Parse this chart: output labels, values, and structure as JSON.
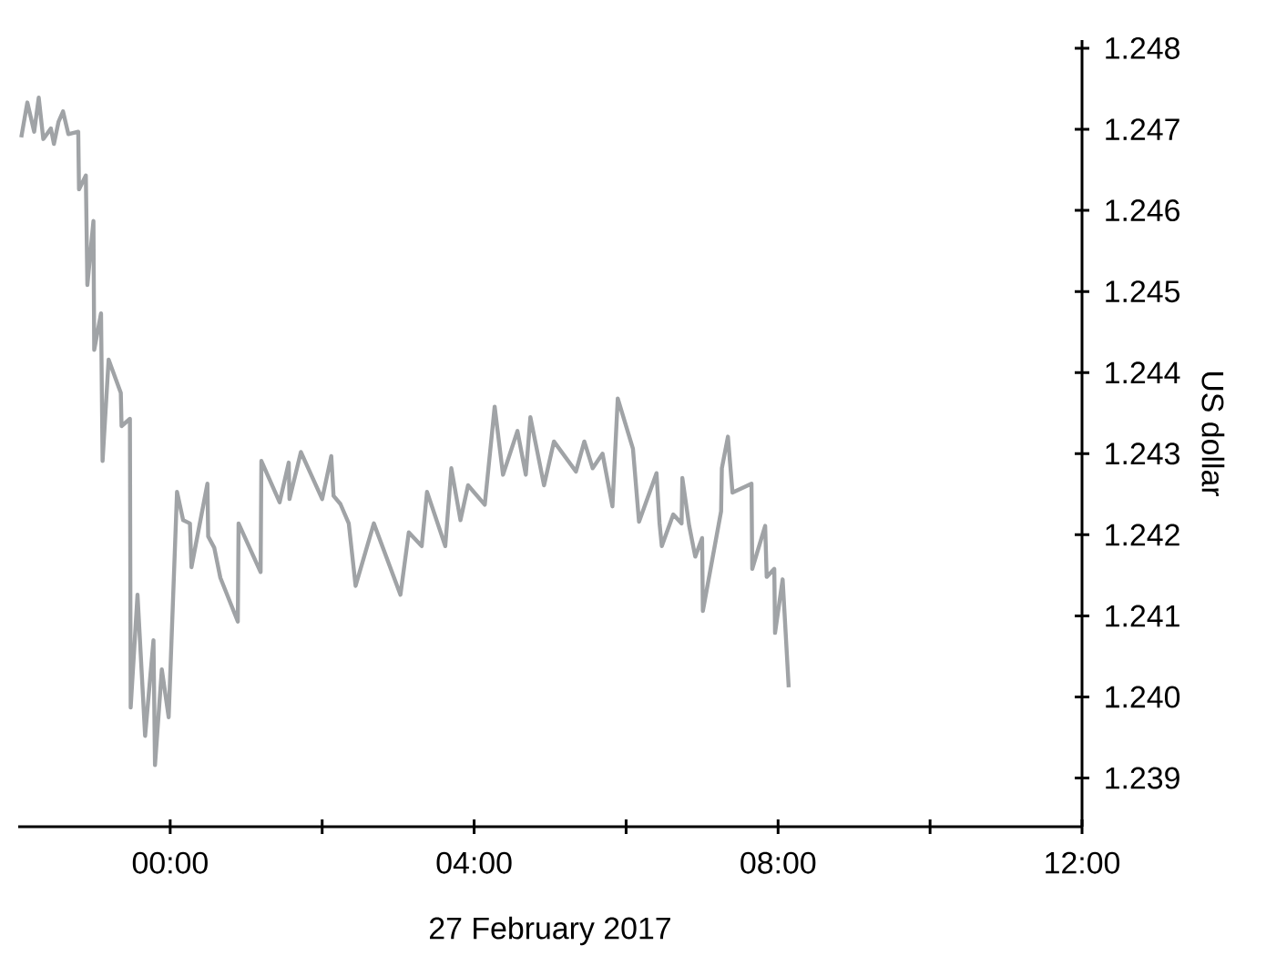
{
  "chart_data": {
    "type": "line",
    "xlabel": "27 February 2017",
    "ylabel": "US dollar",
    "xlim": [
      -2,
      12
    ],
    "ylim": [
      1.2384,
      1.2481
    ],
    "xticks": [
      {
        "value": 0,
        "label": "00:00"
      },
      {
        "value": 2,
        "label": null
      },
      {
        "value": 4,
        "label": "04:00"
      },
      {
        "value": 6,
        "label": null
      },
      {
        "value": 8,
        "label": "08:00"
      },
      {
        "value": 10,
        "label": null
      },
      {
        "value": 12,
        "label": "12:00"
      }
    ],
    "yticks": [
      1.239,
      {
        "value": 1.24,
        "label": "1.240"
      },
      1.241,
      1.242,
      1.243,
      1.244,
      1.245,
      1.246,
      1.247,
      1.248
    ],
    "grid": false,
    "marker": "none",
    "line_style": "solid",
    "series": [
      {
        "color": "#a0a3a6",
        "x": [
          -1.96,
          -1.88,
          -1.79,
          -1.73,
          -1.67,
          -1.57,
          -1.53,
          -1.47,
          -1.41,
          -1.34,
          -1.21,
          -1.2,
          -1.11,
          -1.09,
          -1.01,
          -1.0,
          -0.91,
          -0.89,
          -0.81,
          -0.65,
          -0.64,
          -0.53,
          -0.52,
          -0.43,
          -0.33,
          -0.22,
          -0.2,
          -0.11,
          -0.02,
          0.09,
          0.17,
          0.26,
          0.28,
          0.49,
          0.5,
          0.58,
          0.66,
          0.89,
          0.9,
          1.19,
          1.2,
          1.44,
          1.56,
          1.57,
          1.72,
          2.0,
          2.12,
          2.15,
          2.24,
          2.35,
          2.44,
          2.68,
          3.03,
          3.14,
          3.31,
          3.38,
          3.62,
          3.7,
          3.82,
          3.92,
          4.14,
          4.27,
          4.38,
          4.57,
          4.68,
          4.74,
          4.92,
          5.05,
          5.34,
          5.45,
          5.56,
          5.69,
          5.82,
          5.89,
          6.09,
          6.17,
          6.4,
          6.44,
          6.47,
          6.62,
          6.73,
          6.74,
          6.83,
          6.91,
          7.0,
          7.01,
          7.25,
          7.26,
          7.34,
          7.4,
          7.65,
          7.66,
          7.83,
          7.85,
          7.95,
          7.96,
          8.06,
          8.14
        ],
        "values": [
          1.2469,
          1.24733,
          1.24697,
          1.24739,
          1.24688,
          1.24701,
          1.24682,
          1.24709,
          1.24722,
          1.24694,
          1.24697,
          1.24626,
          1.24643,
          1.24508,
          1.24587,
          1.24428,
          1.24473,
          1.24291,
          1.24416,
          1.24375,
          1.24334,
          1.24343,
          1.23987,
          1.24126,
          1.23952,
          1.2407,
          1.23916,
          1.24034,
          1.23975,
          1.24253,
          1.24218,
          1.24214,
          1.2416,
          1.24263,
          1.24198,
          1.24184,
          1.24147,
          1.24093,
          1.24214,
          1.24154,
          1.24291,
          1.2424,
          1.24289,
          1.24244,
          1.24302,
          1.24244,
          1.24297,
          1.24248,
          1.24238,
          1.24214,
          1.24137,
          1.24214,
          1.24126,
          1.24203,
          1.24186,
          1.24253,
          1.24186,
          1.24282,
          1.24218,
          1.24261,
          1.24237,
          1.24358,
          1.24274,
          1.24328,
          1.24274,
          1.24345,
          1.24261,
          1.24315,
          1.24278,
          1.24315,
          1.24282,
          1.243,
          1.24235,
          1.24368,
          1.24306,
          1.24216,
          1.24276,
          1.24214,
          1.24186,
          1.24225,
          1.24214,
          1.2427,
          1.24211,
          1.24173,
          1.24196,
          1.24106,
          1.24229,
          1.24282,
          1.24321,
          1.24252,
          1.24263,
          1.24158,
          1.24211,
          1.24148,
          1.24158,
          1.24079,
          1.24145,
          1.24012
        ]
      }
    ]
  }
}
